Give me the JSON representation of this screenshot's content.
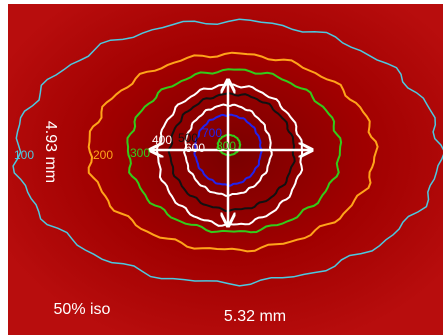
{
  "dimensions": {
    "height": "4.93 mm",
    "width": "5.32 mm"
  },
  "caption": "50% iso",
  "contours": [
    {
      "label": "100",
      "color": "#4cc9e0"
    },
    {
      "label": "200",
      "color": "#ffa41a"
    },
    {
      "label": "300",
      "color": "#33cc1a"
    },
    {
      "label": "400",
      "color": "#ffffff"
    },
    {
      "label": "500",
      "color": "#111111"
    },
    {
      "label": "600",
      "color": "#ffffff"
    },
    {
      "label": "700",
      "color": "#2222ee"
    },
    {
      "label": "800",
      "color": "#33cc1a"
    }
  ]
}
